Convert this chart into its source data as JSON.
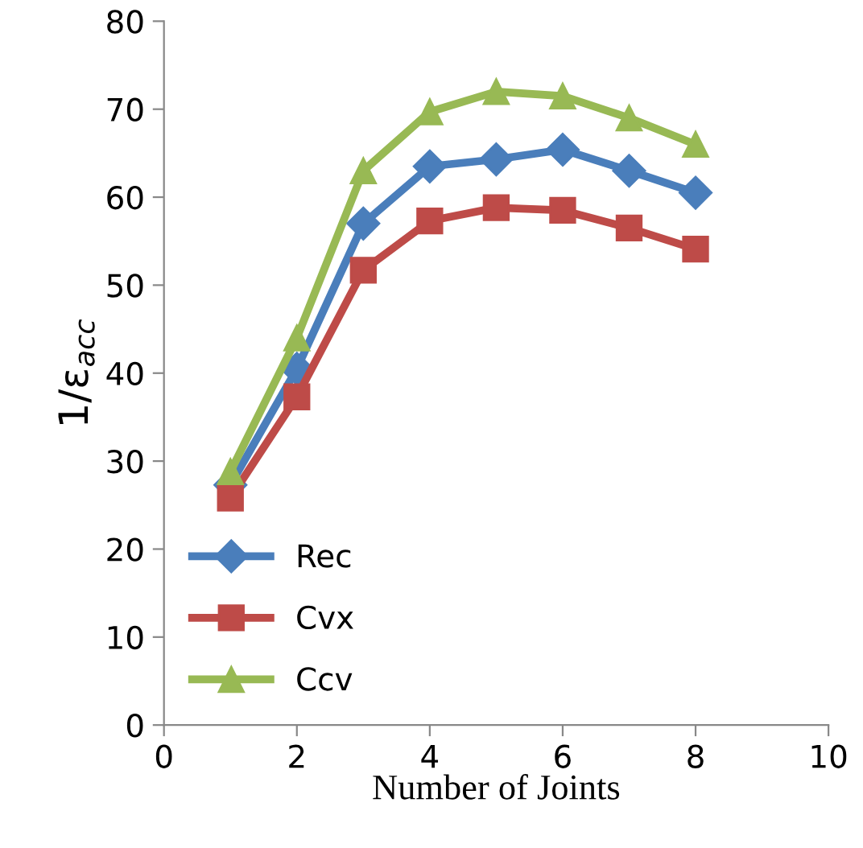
{
  "chart_data": {
    "type": "line",
    "xlabel": "Number of Joints",
    "ylabel": "1/ε$_{acc}$",
    "x": [
      1,
      2,
      3,
      4,
      5,
      6,
      7,
      8
    ],
    "series": [
      {
        "name": "Rec",
        "color": "#4a7ebb",
        "marker": "diamond",
        "values": [
          27.3,
          40.5,
          57.0,
          63.5,
          64.3,
          65.4,
          63.0,
          60.5
        ]
      },
      {
        "name": "Cvx",
        "color": "#be4b48",
        "marker": "square",
        "values": [
          25.8,
          37.3,
          51.7,
          57.3,
          58.8,
          58.5,
          56.5,
          54.1
        ]
      },
      {
        "name": "Ccv",
        "color": "#98b954",
        "marker": "triangle",
        "values": [
          28.8,
          44.0,
          63.0,
          69.7,
          72.0,
          71.5,
          69.0,
          66.0
        ]
      }
    ],
    "xlim": [
      0,
      10
    ],
    "xticks": [
      0,
      2,
      4,
      6,
      8,
      10
    ],
    "ylim": [
      0,
      80
    ],
    "yticks": [
      0,
      10,
      20,
      30,
      40,
      50,
      60,
      70,
      80
    ],
    "grid": false,
    "legend": "bottom left"
  }
}
